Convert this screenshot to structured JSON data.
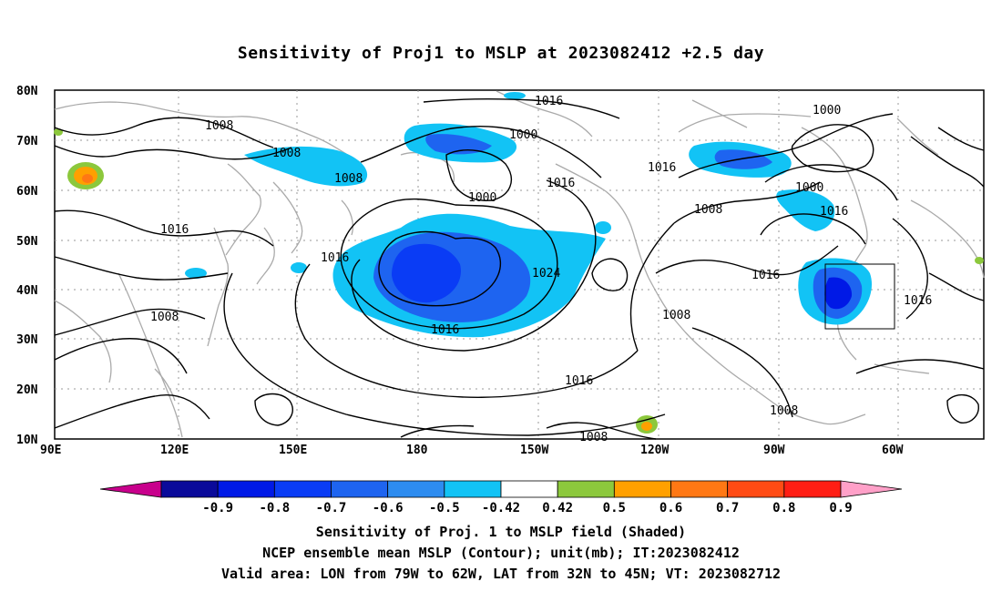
{
  "title": "Sensitivity of Proj1 to MSLP at 2023082412 +2.5 day",
  "lat_labels": [
    "80N",
    "70N",
    "60N",
    "50N",
    "40N",
    "30N",
    "20N",
    "10N"
  ],
  "lon_labels": [
    "90E",
    "120E",
    "150E",
    "180",
    "150W",
    "120W",
    "90W",
    "60W"
  ],
  "contour_labels": [
    "1016",
    "1008",
    "1008",
    "1008",
    "1016",
    "1000",
    "1016",
    "1000",
    "1000",
    "1008",
    "1016",
    "1016",
    "1008",
    "1016",
    "1024",
    "1016",
    "1016",
    "1008",
    "1016",
    "1008",
    "1008"
  ],
  "colorbar": {
    "labels": [
      "-0.9",
      "-0.8",
      "-0.7",
      "-0.6",
      "-0.5",
      "-0.42",
      "0.42",
      "0.5",
      "0.6",
      "0.7",
      "0.8",
      "0.9"
    ],
    "colors": [
      "#c8008c",
      "#0a0a9a",
      "#0019e6",
      "#0a3cf5",
      "#1e64f0",
      "#2d8cf0",
      "#12c3f5",
      "#ffffff",
      "#8cc83c",
      "#ffa000",
      "#ff7814",
      "#ff4b14",
      "#ff1e14",
      "#ffa0c8"
    ]
  },
  "valid_box": {
    "lon_min": "79W",
    "lon_max": "62W",
    "lat_min": "32N",
    "lat_max": "45N"
  },
  "captions": [
    "Sensitivity of Proj. 1 to MSLP field (Shaded)",
    "NCEP ensemble mean MSLP (Contour); unit(mb); IT:2023082412",
    "Valid area: LON from 79W to 62W, LAT from 32N to 45N; VT: 2023082712"
  ]
}
